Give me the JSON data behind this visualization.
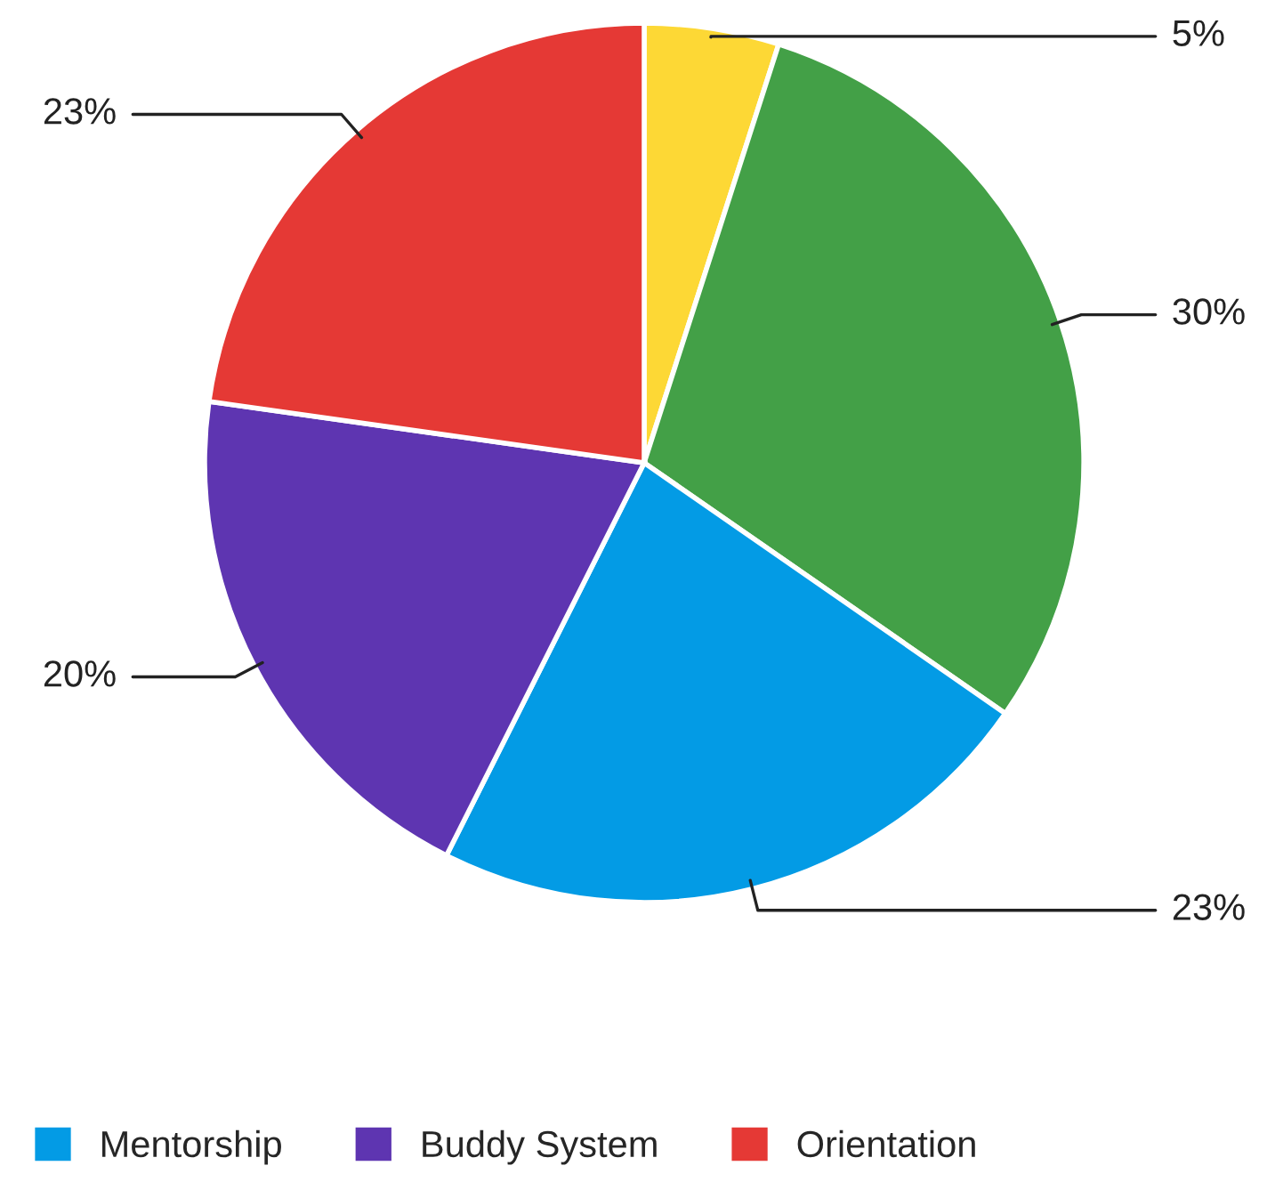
{
  "chart_data": {
    "type": "pie",
    "categories": [
      null,
      null,
      "Mentorship",
      "Buddy System",
      "Orientation"
    ],
    "values": [
      5,
      30,
      23,
      20,
      23
    ],
    "colors": [
      "#fdd835",
      "#43a047",
      "#039be5",
      "#5e35b1",
      "#e53935"
    ],
    "value_labels": [
      "5%",
      "30%",
      "23%",
      "20%",
      "23%"
    ],
    "legend": "bottom"
  }
}
